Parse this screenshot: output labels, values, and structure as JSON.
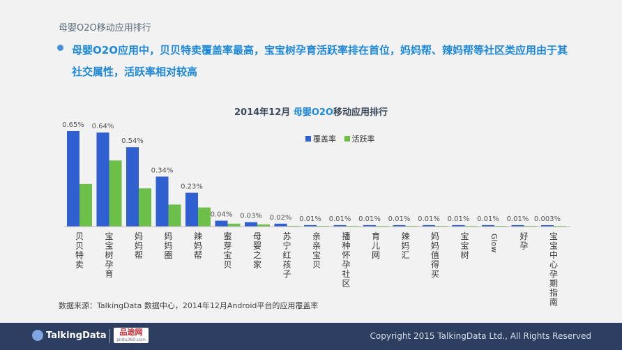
{
  "header": {
    "section_title": "母婴O2O移动应用排行",
    "headline": "母婴O2O应用中，贝贝特卖覆盖率最高，宝宝树孕育活跃率排在首位，妈妈帮、辣妈帮等社区类应用由于其社交属性，活跃率相对较高"
  },
  "chart_title_prefix": "2014年12月 ",
  "chart_title_highlight": "母婴O2O",
  "chart_title_suffix": "移动应用排行",
  "legend": {
    "coverage": "覆盖率",
    "active": "活跃率"
  },
  "colors": {
    "coverage": "#2f5fd0",
    "active": "#6cc04a",
    "accent": "#1e88d8",
    "footer": "#2d3e60"
  },
  "chart_data": {
    "type": "bar",
    "title": "2014年12月 母婴O2O移动应用排行",
    "xlabel": "",
    "ylabel": "",
    "categories": [
      "贝贝特卖",
      "宝宝树孕育",
      "妈妈帮",
      "妈妈圈",
      "辣妈帮",
      "蜜芽宝贝",
      "母婴之家",
      "苏宁红孩子",
      "亲亲宝贝",
      "播种怀孕社区",
      "育儿网",
      "辣妈汇",
      "妈妈值得买",
      "宝宝树",
      "Glow",
      "好孕",
      "宝宝中心孕期指南"
    ],
    "labels": [
      "0.65%",
      "0.64%",
      "0.54%",
      "0.34%",
      "0.23%",
      "0.04%",
      "0.03%",
      "0.02%",
      "0.01%",
      "0.01%",
      "0.01%",
      "0.01%",
      "0.01%",
      "0.01%",
      "0.01%",
      "0.01%",
      "0.003%"
    ],
    "series": [
      {
        "name": "覆盖率",
        "values": [
          0.65,
          0.64,
          0.54,
          0.34,
          0.23,
          0.04,
          0.03,
          0.02,
          0.01,
          0.01,
          0.01,
          0.01,
          0.01,
          0.01,
          0.01,
          0.01,
          0.003
        ]
      },
      {
        "name": "活跃率",
        "values": [
          0.29,
          0.45,
          0.26,
          0.15,
          0.13,
          0.02,
          0.015,
          0.005,
          0.002,
          0.002,
          0.002,
          0.004,
          0.002,
          0.002,
          0.002,
          0.002,
          0.001
        ]
      }
    ],
    "ylim": [
      0,
      0.65
    ],
    "grid": false,
    "legend": "top-center"
  },
  "source": "数据来源：TalkingData 数据中心，2014年12月Android平台的应用覆盖率",
  "footer": {
    "brand": "TalkingData",
    "partner": "品途网",
    "partner_url": "pintu360.com",
    "copyright": "Copyright 2015 TalkingData Ltd., All Rights Reserved"
  }
}
